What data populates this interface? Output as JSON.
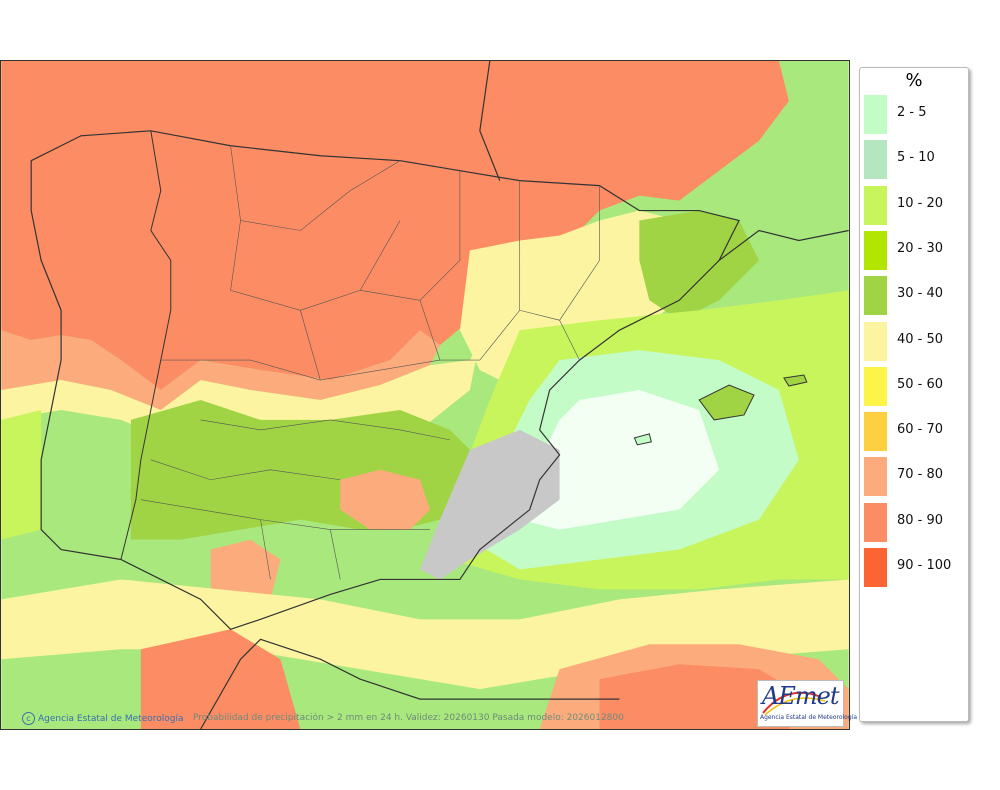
{
  "map": {
    "colors": {
      "sea_background": "#a8e87c",
      "c_2_5": "#c4fcc8",
      "c_5_10": "#b4e6c0",
      "c_10_20": "#c8f45c",
      "c_20_30": "#b2e600",
      "c_30_40": "#a0d444",
      "c_40_50": "#fcf4a0",
      "c_50_60": "#fcf448",
      "c_60_70": "#fcd040",
      "c_70_80": "#fcac7c",
      "c_80_90": "#fc8c64",
      "c_90_100": "#fc6434",
      "relief_gray": "#c8c8c8",
      "white_zone": "#f4fff4",
      "boundary": "#333333"
    }
  },
  "legend": {
    "unit": "%",
    "items": [
      {
        "label": "2 - 5",
        "color": "#c4fcc8"
      },
      {
        "label": "5 - 10",
        "color": "#b4e6c0"
      },
      {
        "label": "10 - 20",
        "color": "#c8f45c"
      },
      {
        "label": "20 - 30",
        "color": "#b2e600"
      },
      {
        "label": "30 - 40",
        "color": "#a0d444"
      },
      {
        "label": "40 - 50",
        "color": "#fcf4a0"
      },
      {
        "label": "50 - 60",
        "color": "#fcf448"
      },
      {
        "label": "60 - 70",
        "color": "#fcd040"
      },
      {
        "label": "70 - 80",
        "color": "#fcac7c"
      },
      {
        "label": "80 - 90",
        "color": "#fc8c64"
      },
      {
        "label": "90 - 100",
        "color": "#fc6434"
      }
    ]
  },
  "footer": {
    "credit": "Agencia Estatal de Meteorología",
    "caption": "Probabilidad de precipitación > 2 mm en 24 h. Validez: 20260130 Pasada modelo: 2026012800"
  },
  "logo": {
    "word": "AEmet",
    "subtitle": "Agencia Estatal de Meteorología",
    "icon": "aemet-logo"
  }
}
